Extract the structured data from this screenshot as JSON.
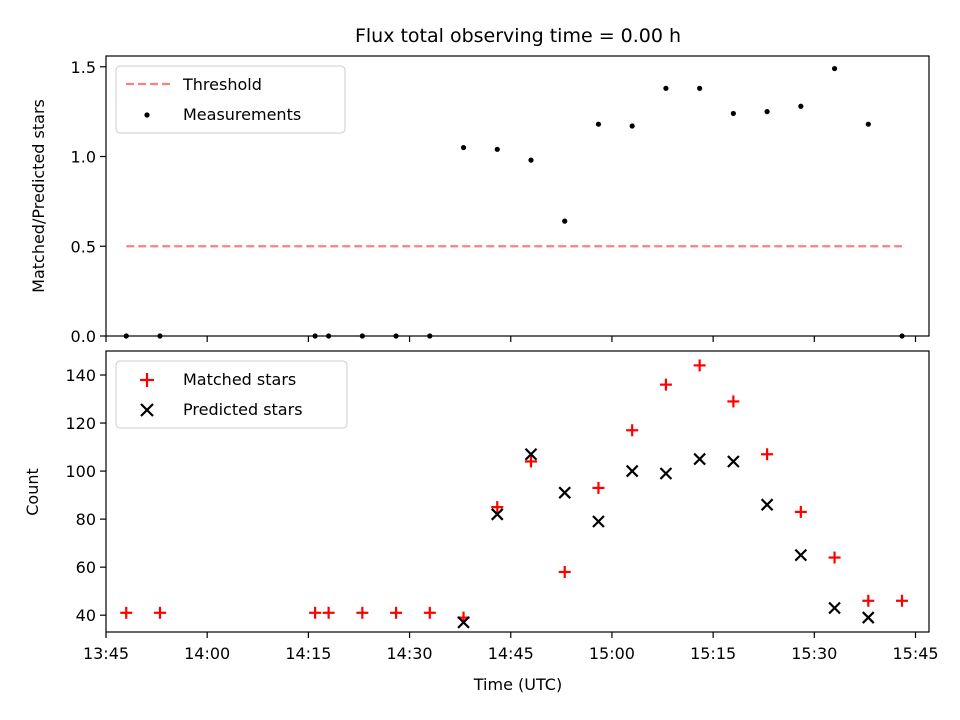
{
  "chart_data": [
    {
      "type": "scatter",
      "title": "Flux total observing time = 0.00 h",
      "ylabel": "Matched/Predicted stars",
      "xlabel": "",
      "ylim": [
        0,
        1.56
      ],
      "yticks": [
        0.0,
        0.5,
        1.0,
        1.5
      ],
      "ytick_labels": [
        "0.0",
        "0.5",
        "1.0",
        "1.5"
      ],
      "legend_position": "top-left",
      "series": [
        {
          "name": "Threshold",
          "kind": "line",
          "style": "dashed",
          "color": "#ff7f7f",
          "x": [
            "13:48",
            "15:43"
          ],
          "y": [
            0.5,
            0.5
          ]
        },
        {
          "name": "Measurements",
          "kind": "scatter",
          "marker": "dot",
          "color": "#000000",
          "x": [
            "13:48",
            "13:53",
            "14:16",
            "14:18",
            "14:23",
            "14:28",
            "14:33",
            "14:38",
            "14:43",
            "14:48",
            "14:53",
            "14:58",
            "15:03",
            "15:08",
            "15:13",
            "15:18",
            "15:23",
            "15:28",
            "15:33",
            "15:38",
            "15:43"
          ],
          "y": [
            0,
            0,
            0,
            0,
            0,
            0,
            0,
            1.05,
            1.04,
            0.98,
            0.64,
            1.18,
            1.17,
            1.38,
            1.38,
            1.24,
            1.25,
            1.28,
            1.49,
            1.18,
            0
          ]
        }
      ]
    },
    {
      "type": "scatter",
      "title": "",
      "xlabel": "Time (UTC)",
      "ylabel": "Count",
      "xlim": [
        "13:45",
        "15:47"
      ],
      "xticks": [
        "13:45",
        "14:00",
        "14:15",
        "14:30",
        "14:45",
        "15:00",
        "15:15",
        "15:30",
        "15:45"
      ],
      "ylim": [
        33,
        150
      ],
      "yticks": [
        40,
        60,
        80,
        100,
        120,
        140
      ],
      "ytick_labels": [
        "40",
        "60",
        "80",
        "100",
        "120",
        "140"
      ],
      "legend_position": "top-left",
      "series": [
        {
          "name": "Matched stars",
          "marker": "plus",
          "color": "#ff0000",
          "x": [
            "13:48",
            "13:53",
            "14:16",
            "14:18",
            "14:23",
            "14:28",
            "14:33",
            "14:38",
            "14:43",
            "14:48",
            "14:53",
            "14:58",
            "15:03",
            "15:08",
            "15:13",
            "15:18",
            "15:23",
            "15:28",
            "15:33",
            "15:38",
            "15:43"
          ],
          "y": [
            41,
            41,
            41,
            41,
            41,
            41,
            41,
            39,
            85,
            104,
            58,
            93,
            117,
            136,
            144,
            129,
            107,
            83,
            64,
            46,
            46
          ]
        },
        {
          "name": "Predicted stars",
          "marker": "cross",
          "color": "#000000",
          "x": [
            "14:38",
            "14:43",
            "14:48",
            "14:53",
            "14:58",
            "15:03",
            "15:08",
            "15:13",
            "15:18",
            "15:23",
            "15:28",
            "15:33",
            "15:38"
          ],
          "y": [
            37,
            82,
            107,
            91,
            79,
            100,
            99,
            105,
            104,
            86,
            65,
            43,
            39
          ]
        }
      ]
    }
  ]
}
